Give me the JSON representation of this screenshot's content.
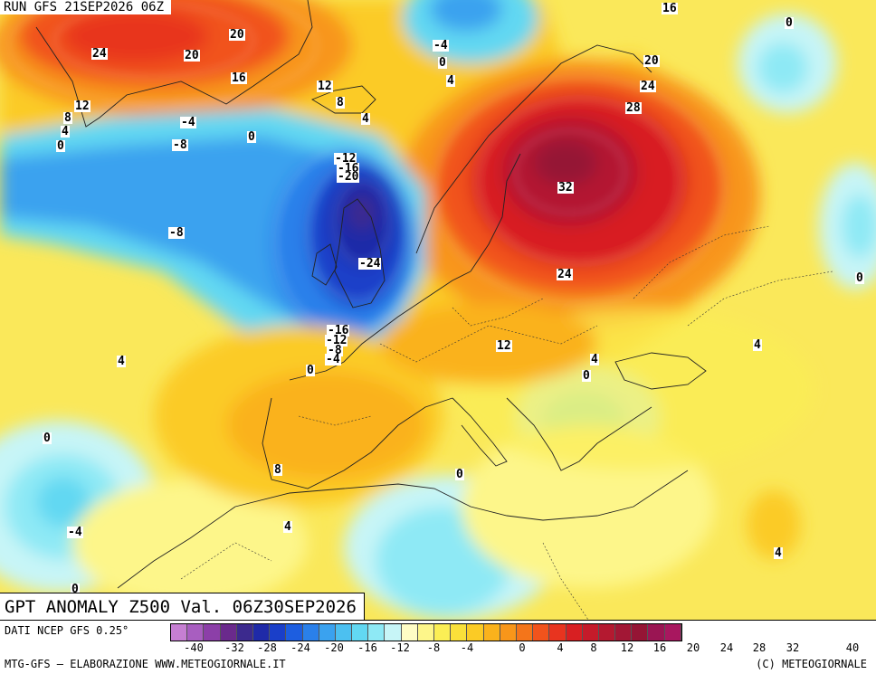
{
  "header": {
    "run_label": "RUN GFS 21SEP2026 06Z"
  },
  "footer": {
    "title": "GPT ANOMALY Z500 Val. 06Z30SEP2026",
    "data_source": "DATI NCEP GFS 0.25°",
    "credit_left": "MTG-GFS — ELABORAZIONE WWW.METEOGIORNALE.IT",
    "credit_right": "(C) METEOGIORNALE"
  },
  "legend": {
    "colors": [
      "#c67fd2",
      "#a85ec0",
      "#8c3fa8",
      "#6a2a8c",
      "#3c2a8e",
      "#1f2aa8",
      "#1a3fc9",
      "#1d5ee0",
      "#2a80ea",
      "#3aa2ef",
      "#4cc0f0",
      "#62d8f2",
      "#8ee9f5",
      "#c7f5f7",
      "#fffdc5",
      "#fdf68a",
      "#fbee55",
      "#fae03a",
      "#fbcb25",
      "#fab21c",
      "#f8961a",
      "#f4751a",
      "#f1531c",
      "#e8341f",
      "#d81f22",
      "#c51b2a",
      "#b41930",
      "#a21735",
      "#951535",
      "#9a1553",
      "#a8175f"
    ],
    "tick_labels": [
      "-40",
      "-32",
      "-28",
      "-24",
      "-20",
      "-16",
      "-12",
      "-8",
      "-4",
      "0",
      "4",
      "8",
      "12",
      "16",
      "20",
      "24",
      "28",
      "32",
      "40"
    ]
  },
  "contour_labels": [
    {
      "name": "label-24-greenland",
      "text": "24"
    },
    {
      "name": "label-20-greenland-a",
      "text": "20"
    },
    {
      "name": "label-20-greenland-b",
      "text": "20"
    },
    {
      "name": "label-16-greenland",
      "text": "16"
    },
    {
      "name": "label-12-greenland",
      "text": "12"
    },
    {
      "name": "label-8-greenland",
      "text": "8"
    },
    {
      "name": "label-4-greenland",
      "text": "4"
    },
    {
      "name": "label-0-greenland",
      "text": "0"
    },
    {
      "name": "label-minus4-iceland",
      "text": "-4"
    },
    {
      "name": "label-0-iceland",
      "text": "0"
    },
    {
      "name": "label-minus8-atlantic-n",
      "text": "-8"
    },
    {
      "name": "label-minus8-atlantic-w",
      "text": "-8"
    },
    {
      "name": "label-12-iceland",
      "text": "12"
    },
    {
      "name": "label-8-iceland",
      "text": "8"
    },
    {
      "name": "label-4-norway-sea",
      "text": "4"
    },
    {
      "name": "label-minus4-svalbard",
      "text": "-4"
    },
    {
      "name": "label-0-svalbard",
      "text": "0"
    },
    {
      "name": "label-4-svalbard",
      "text": "4"
    },
    {
      "name": "label-16-arctic",
      "text": "16"
    },
    {
      "name": "label-0-ne",
      "text": "0"
    },
    {
      "name": "label-20-barents",
      "text": "20"
    },
    {
      "name": "label-24-barents",
      "text": "24"
    },
    {
      "name": "label-28-russia",
      "text": "28"
    },
    {
      "name": "label-32-russia",
      "text": "32"
    },
    {
      "name": "label-24-russia-s",
      "text": "24"
    },
    {
      "name": "label-minus12-low-n",
      "text": "-12"
    },
    {
      "name": "label-minus16-low-n",
      "text": "-16"
    },
    {
      "name": "label-minus20-low-n",
      "text": "-20"
    },
    {
      "name": "label-minus24-low",
      "text": "-24"
    },
    {
      "name": "label-minus16-low-s",
      "text": "-16"
    },
    {
      "name": "label-minus12-low-s",
      "text": "-12"
    },
    {
      "name": "label-minus8-low-s",
      "text": "-8"
    },
    {
      "name": "label-minus4-low-s",
      "text": "-4"
    },
    {
      "name": "label-0-biscay",
      "text": "0"
    },
    {
      "name": "label-4-atlantic",
      "text": "4"
    },
    {
      "name": "label-12-central-europe",
      "text": "12"
    },
    {
      "name": "label-4-balkans",
      "text": "4"
    },
    {
      "name": "label-0-balkans",
      "text": "0"
    },
    {
      "name": "label-4-black-sea",
      "text": "4"
    },
    {
      "name": "label-0-east-edge",
      "text": "0"
    },
    {
      "name": "label-0-azores-n",
      "text": "0"
    },
    {
      "name": "label-minus4-azores",
      "text": "-4"
    },
    {
      "name": "label-0-bottom-left",
      "text": "0"
    },
    {
      "name": "label-8-iberia",
      "text": "8"
    },
    {
      "name": "label-4-morocco",
      "text": "4"
    },
    {
      "name": "label-0-tunisia",
      "text": "0"
    },
    {
      "name": "label-4-egypt",
      "text": "4"
    }
  ]
}
